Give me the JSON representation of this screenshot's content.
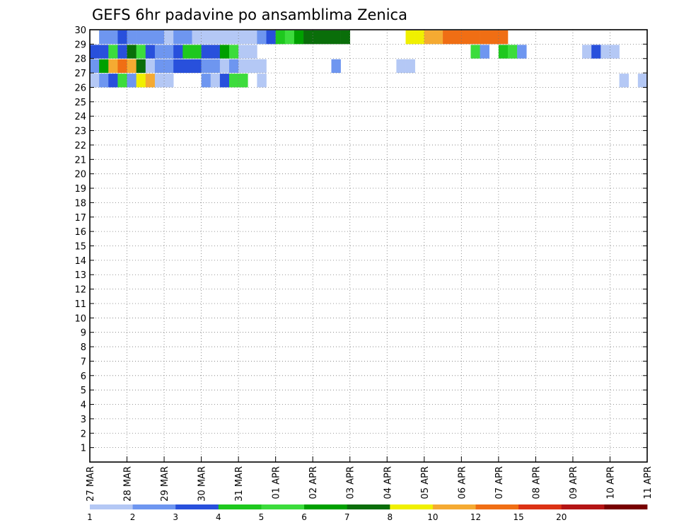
{
  "chart_data": {
    "type": "heatmap",
    "title": "GEFS 6hr padavine po ansamblima Zenica",
    "xlabel": "",
    "ylabel": "",
    "x_tick_labels": [
      "27 MAR",
      "28 MAR",
      "29 MAR",
      "30 MAR",
      "31 MAR",
      "01 APR",
      "02 APR",
      "03 APR",
      "04 APR",
      "05 APR",
      "06 APR",
      "07 APR",
      "08 APR",
      "09 APR",
      "10 APR",
      "11 APR"
    ],
    "y_tick_labels": [
      "1",
      "2",
      "3",
      "4",
      "5",
      "6",
      "7",
      "8",
      "9",
      "10",
      "11",
      "12",
      "13",
      "14",
      "15",
      "16",
      "17",
      "18",
      "19",
      "20",
      "21",
      "22",
      "23",
      "24",
      "25",
      "26",
      "27",
      "28",
      "29",
      "30"
    ],
    "time_steps": 60,
    "members": 30,
    "x_range": [
      "27 MAR 00",
      "11 APR 00"
    ],
    "y_range": [
      0,
      30
    ],
    "grid": "dotted",
    "colorbar": {
      "position": "bottom",
      "tick_labels": [
        "1",
        "2",
        "3",
        "4",
        "5",
        "6",
        "7",
        "8",
        "10",
        "12",
        "15",
        "20"
      ],
      "colors": [
        "#b4c8f5",
        "#6e96f0",
        "#2850dc",
        "#1ec81e",
        "#3cdc3c",
        "#00a000",
        "#0a6e0a",
        "#f0f000",
        "#f5aa32",
        "#f06e14",
        "#dc3214",
        "#b41414",
        "#780000"
      ]
    },
    "precip_mm": [
      {
        "member": 30,
        "steps": [
          [
            1,
            2
          ],
          [
            2,
            2
          ],
          [
            3,
            3
          ],
          [
            4,
            2
          ],
          [
            5,
            2
          ],
          [
            6,
            2
          ],
          [
            7,
            2
          ],
          [
            8,
            1
          ],
          [
            9,
            2
          ],
          [
            10,
            2
          ],
          [
            11,
            1
          ],
          [
            12,
            1
          ],
          [
            13,
            1
          ],
          [
            14,
            1
          ],
          [
            15,
            1
          ],
          [
            16,
            1
          ],
          [
            17,
            1
          ],
          [
            18,
            2
          ],
          [
            19,
            3
          ],
          [
            20,
            4
          ],
          [
            21,
            5
          ],
          [
            22,
            6
          ],
          [
            23,
            7
          ],
          [
            24,
            7
          ],
          [
            25,
            7
          ],
          [
            26,
            7
          ],
          [
            27,
            7
          ],
          [
            34,
            8
          ],
          [
            35,
            9
          ],
          [
            36,
            10
          ],
          [
            37,
            11
          ],
          [
            38,
            12
          ],
          [
            39,
            13
          ],
          [
            40,
            14
          ],
          [
            41,
            14
          ],
          [
            42,
            14
          ],
          [
            43,
            14
          ],
          [
            44,
            14
          ]
        ]
      },
      {
        "member": 29,
        "steps": [
          [
            0,
            3
          ],
          [
            1,
            3
          ],
          [
            2,
            5
          ],
          [
            3,
            3
          ],
          [
            4,
            7
          ],
          [
            5,
            5
          ],
          [
            6,
            3
          ],
          [
            7,
            2
          ],
          [
            8,
            2
          ],
          [
            9,
            3
          ],
          [
            10,
            4
          ],
          [
            11,
            4
          ],
          [
            12,
            3
          ],
          [
            13,
            3
          ],
          [
            14,
            6
          ],
          [
            15,
            5
          ],
          [
            16,
            1
          ],
          [
            17,
            1
          ],
          [
            41,
            5
          ],
          [
            42,
            2
          ],
          [
            44,
            4
          ],
          [
            45,
            5
          ],
          [
            46,
            2
          ],
          [
            53,
            1
          ],
          [
            54,
            3
          ],
          [
            55,
            1
          ],
          [
            56,
            1
          ]
        ]
      },
      {
        "member": 28,
        "steps": [
          [
            0,
            2
          ],
          [
            1,
            6
          ],
          [
            2,
            11
          ],
          [
            3,
            12
          ],
          [
            4,
            10
          ],
          [
            5,
            7
          ],
          [
            6,
            1
          ],
          [
            7,
            2
          ],
          [
            8,
            2
          ],
          [
            9,
            3
          ],
          [
            10,
            3
          ],
          [
            11,
            3
          ],
          [
            12,
            2
          ],
          [
            13,
            2
          ],
          [
            14,
            1
          ],
          [
            15,
            2
          ],
          [
            16,
            1
          ],
          [
            17,
            1
          ],
          [
            18,
            1
          ],
          [
            26,
            2
          ],
          [
            33,
            1
          ],
          [
            34,
            1
          ]
        ]
      },
      {
        "member": 27,
        "steps": [
          [
            0,
            1
          ],
          [
            1,
            2
          ],
          [
            2,
            3
          ],
          [
            3,
            5
          ],
          [
            4,
            2
          ],
          [
            5,
            9
          ],
          [
            6,
            11
          ],
          [
            7,
            1
          ],
          [
            8,
            1
          ],
          [
            12,
            2
          ],
          [
            13,
            1
          ],
          [
            14,
            3
          ],
          [
            15,
            5
          ],
          [
            16,
            5
          ],
          [
            18,
            1
          ],
          [
            57,
            1
          ],
          [
            59,
            1
          ]
        ]
      }
    ]
  }
}
